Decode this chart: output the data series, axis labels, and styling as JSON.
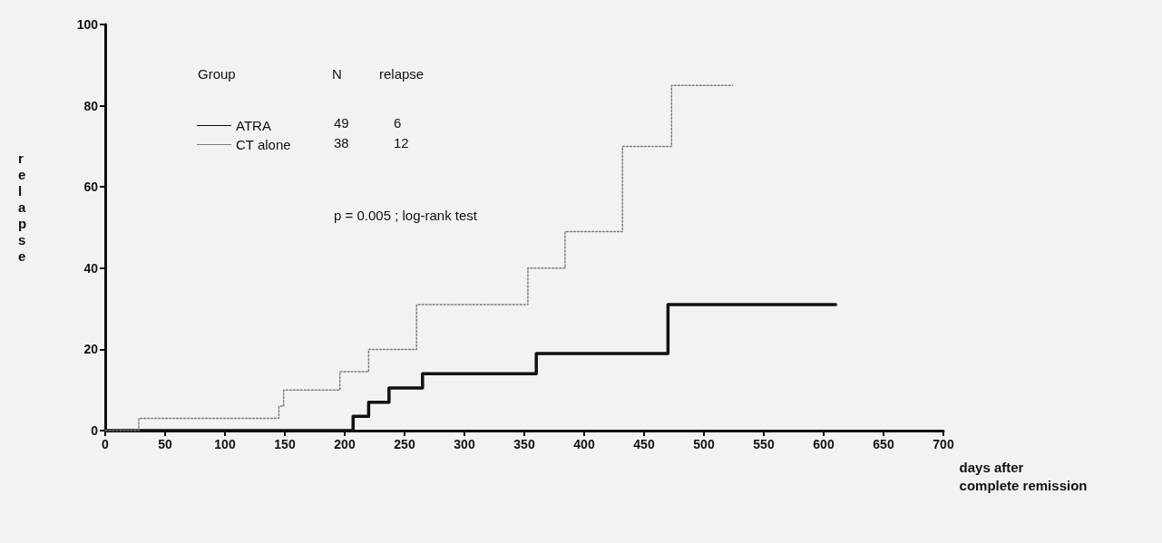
{
  "chart_data": {
    "type": "step",
    "ylabel": "relapse",
    "xlabel": "days after\ncomplete remission",
    "xlim": [
      0,
      700
    ],
    "xticks": [
      0,
      50,
      100,
      150,
      200,
      250,
      300,
      350,
      400,
      450,
      500,
      550,
      600,
      650,
      700
    ],
    "ylim": [
      0,
      100
    ],
    "yticks": [
      0,
      20,
      40,
      60,
      80,
      100
    ],
    "grid": false,
    "marker": "none",
    "legend": "top left",
    "series": [
      {
        "name": "ATRA",
        "color": "#111111",
        "x": [
          0,
          207,
          220,
          237,
          265,
          360,
          470,
          610
        ],
        "values": [
          0,
          3.5,
          7,
          10.5,
          14,
          19,
          31,
          31
        ]
      },
      {
        "name": "CT alone",
        "color": "#808080",
        "line_style": "dotted",
        "x": [
          0,
          28,
          145,
          149,
          196,
          220,
          260,
          353,
          384,
          432,
          473,
          524
        ],
        "values": [
          0,
          3,
          6,
          10,
          14.5,
          20,
          31,
          40,
          49,
          70,
          85,
          85
        ]
      }
    ],
    "annotations": [
      "Group",
      "N",
      "relapse",
      "49",
      "6",
      "38",
      "12",
      "p = 0.005 ; log-rank test"
    ]
  }
}
